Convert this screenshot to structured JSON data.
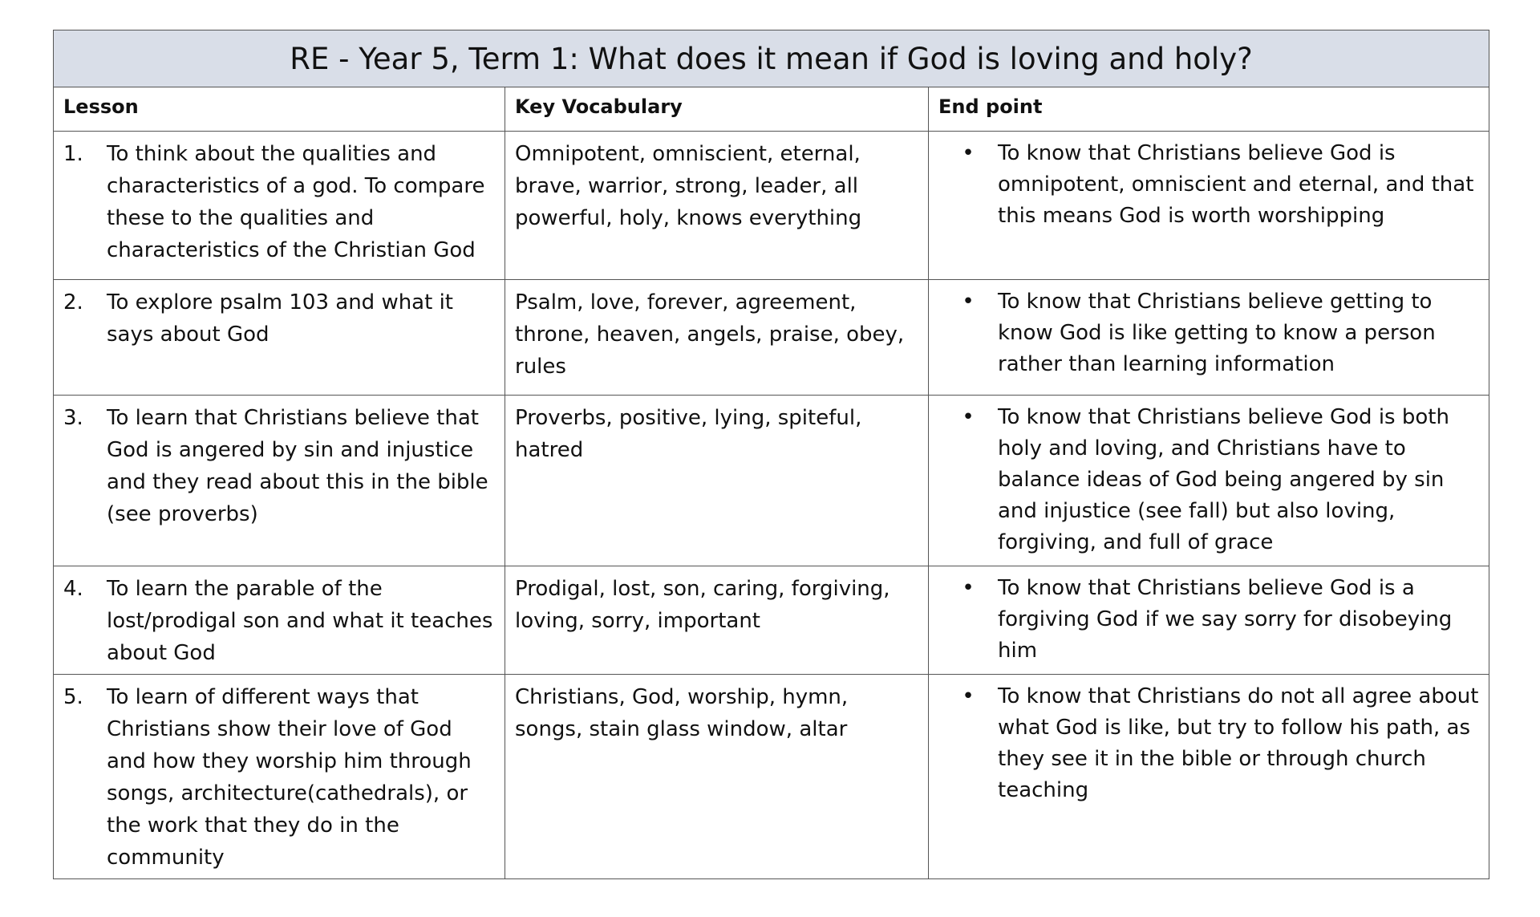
{
  "title": "RE - Year 5, Term 1: What does it mean if God is loving and holy?",
  "headers": {
    "lesson": "Lesson",
    "vocab": "Key Vocabulary",
    "end": "End point"
  },
  "rows": [
    {
      "num": "1.",
      "lesson": "To think about the qualities and characteristics of a god. To compare these to the qualities and characteristics of the Christian God",
      "vocab": "Omnipotent, omniscient, eternal, brave, warrior, strong, leader, all powerful, holy, knows everything",
      "end": "To know that Christians believe God is omnipotent, omniscient and eternal, and that this means God is worth worshipping"
    },
    {
      "num": "2.",
      "lesson": "To explore psalm 103 and what it says about God",
      "vocab": "Psalm, love, forever, agreement, throne, heaven, angels, praise, obey, rules",
      "end": "To know that Christians believe getting to know God is like getting to know a person rather than learning information"
    },
    {
      "num": "3.",
      "lesson": "To learn that Christians believe that God is angered by sin and injustice and they read about this in the bible (see proverbs)",
      "vocab": "Proverbs, positive, lying, spiteful, hatred",
      "end": "To know that Christians believe God is both holy and loving, and Christians have to balance ideas of God being angered by sin and injustice (see fall) but also loving, forgiving, and full of grace"
    },
    {
      "num": "4.",
      "lesson": "To learn the parable of the lost/prodigal son and what it teaches about God",
      "vocab": "Prodigal, lost, son, caring, forgiving, loving, sorry, important",
      "end": "To know that Christians believe God is a forgiving God if we say sorry for disobeying him"
    },
    {
      "num": "5.",
      "lesson": "To learn of different ways that Christians show their love of God and how they worship him through songs, architecture(cathedrals), or the work that they do in the community",
      "vocab": "Christians, God, worship, hymn, songs, stain glass window, altar",
      "end": "To know that Christians do not all agree about what God is like, but try to follow his path, as they see it in the bible or through church teaching"
    }
  ],
  "bullet": "•"
}
